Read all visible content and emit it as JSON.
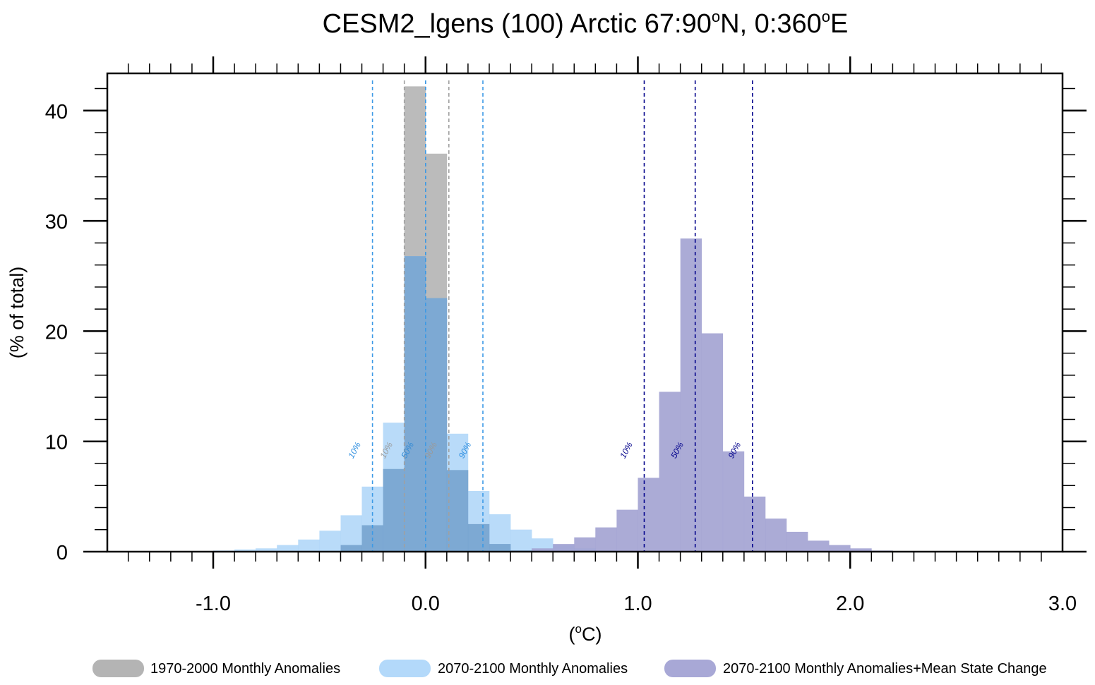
{
  "chart_data": {
    "type": "histogram",
    "title": "CESM2_lgens (100) Arctic  67:90°N, 0:360°E",
    "title_parts": {
      "main": "CESM2_lgens (100) Arctic  67:90",
      "deg1": "o",
      "mid": "N, 0:360",
      "deg2": "o",
      "end": "E"
    },
    "xlabel": "(°C)",
    "xlabel_parts": {
      "open": "(",
      "deg": "o",
      "close": "C)"
    },
    "ylabel": "(% of total)",
    "xlim": [
      -1.5,
      3.0
    ],
    "ylim": [
      0,
      43.5
    ],
    "x_ticks": [
      -1.0,
      0.0,
      1.0,
      2.0,
      3.0
    ],
    "x_tick_labels": [
      "-1.0",
      "0.0",
      "1.0",
      "2.0",
      "3.0"
    ],
    "y_ticks": [
      0,
      10,
      20,
      30,
      40
    ],
    "y_tick_labels": [
      "0",
      "10",
      "20",
      "30",
      "40"
    ],
    "bin_width": 0.1,
    "series": [
      {
        "name": "1970-2000 Monthly Anomalies",
        "color": "#b4b4b4",
        "bins": [
          {
            "x": -0.35,
            "y": 0.6
          },
          {
            "x": -0.25,
            "y": 2.4
          },
          {
            "x": -0.15,
            "y": 7.5
          },
          {
            "x": -0.05,
            "y": 42.2
          },
          {
            "x": 0.05,
            "y": 36.1
          },
          {
            "x": 0.15,
            "y": 7.4
          },
          {
            "x": 0.25,
            "y": 2.5
          },
          {
            "x": 0.35,
            "y": 0.7
          },
          {
            "x": 0.45,
            "y": 0.1
          }
        ],
        "percentiles": {
          "p10": -0.1,
          "p50": 0.0,
          "p90": 0.11
        },
        "percentile_labels": [
          "10%",
          "50%",
          "90%"
        ]
      },
      {
        "name": "2070-2100 Monthly Anomalies",
        "color": "#b3d9fa",
        "bins": [
          {
            "x": -0.95,
            "y": 0.1
          },
          {
            "x": -0.85,
            "y": 0.2
          },
          {
            "x": -0.75,
            "y": 0.3
          },
          {
            "x": -0.65,
            "y": 0.6
          },
          {
            "x": -0.55,
            "y": 1.1
          },
          {
            "x": -0.45,
            "y": 1.9
          },
          {
            "x": -0.35,
            "y": 3.3
          },
          {
            "x": -0.25,
            "y": 5.9
          },
          {
            "x": -0.15,
            "y": 11.7
          },
          {
            "x": -0.05,
            "y": 26.8
          },
          {
            "x": 0.05,
            "y": 23.0
          },
          {
            "x": 0.15,
            "y": 10.7
          },
          {
            "x": 0.25,
            "y": 5.5
          },
          {
            "x": 0.35,
            "y": 3.4
          },
          {
            "x": 0.45,
            "y": 2.0
          },
          {
            "x": 0.55,
            "y": 1.2
          },
          {
            "x": 0.65,
            "y": 0.6
          },
          {
            "x": 0.75,
            "y": 0.3
          },
          {
            "x": 0.85,
            "y": 0.1
          }
        ],
        "percentiles": {
          "p10": -0.25,
          "p50": 0.0,
          "p90": 0.27
        },
        "percentile_labels": [
          "10%",
          "50%",
          "90%"
        ]
      },
      {
        "name": "2070-2100 Monthly Anomalies+Mean State Change",
        "color": "#a8a8d6",
        "bins": [
          {
            "x": 0.45,
            "y": 0.1
          },
          {
            "x": 0.55,
            "y": 0.3
          },
          {
            "x": 0.65,
            "y": 0.7
          },
          {
            "x": 0.75,
            "y": 1.3
          },
          {
            "x": 0.85,
            "y": 2.2
          },
          {
            "x": 0.95,
            "y": 3.8
          },
          {
            "x": 1.05,
            "y": 6.7
          },
          {
            "x": 1.15,
            "y": 14.5
          },
          {
            "x": 1.25,
            "y": 28.4
          },
          {
            "x": 1.35,
            "y": 19.8
          },
          {
            "x": 1.45,
            "y": 9.1
          },
          {
            "x": 1.55,
            "y": 5.0
          },
          {
            "x": 1.65,
            "y": 3.0
          },
          {
            "x": 1.75,
            "y": 1.8
          },
          {
            "x": 1.85,
            "y": 1.0
          },
          {
            "x": 1.95,
            "y": 0.6
          },
          {
            "x": 2.05,
            "y": 0.3
          },
          {
            "x": 2.15,
            "y": 0.1
          }
        ],
        "percentiles": {
          "p10": 1.03,
          "p50": 1.27,
          "p90": 1.54
        },
        "percentile_labels": [
          "10%",
          "50%",
          "90%"
        ]
      }
    ],
    "percentile_line_colors": [
      "#a0a0a0",
      "#3d9ae6",
      "#00008b"
    ],
    "legend": {
      "placement": "bottom",
      "entries": [
        {
          "label": "1970-2000 Monthly Anomalies",
          "color": "#b4b4b4"
        },
        {
          "label": "2070-2100 Monthly Anomalies",
          "color": "#b3d9fa"
        },
        {
          "label": "2070-2100 Monthly Anomalies+Mean State Change",
          "color": "#a8a8d6"
        }
      ]
    }
  }
}
